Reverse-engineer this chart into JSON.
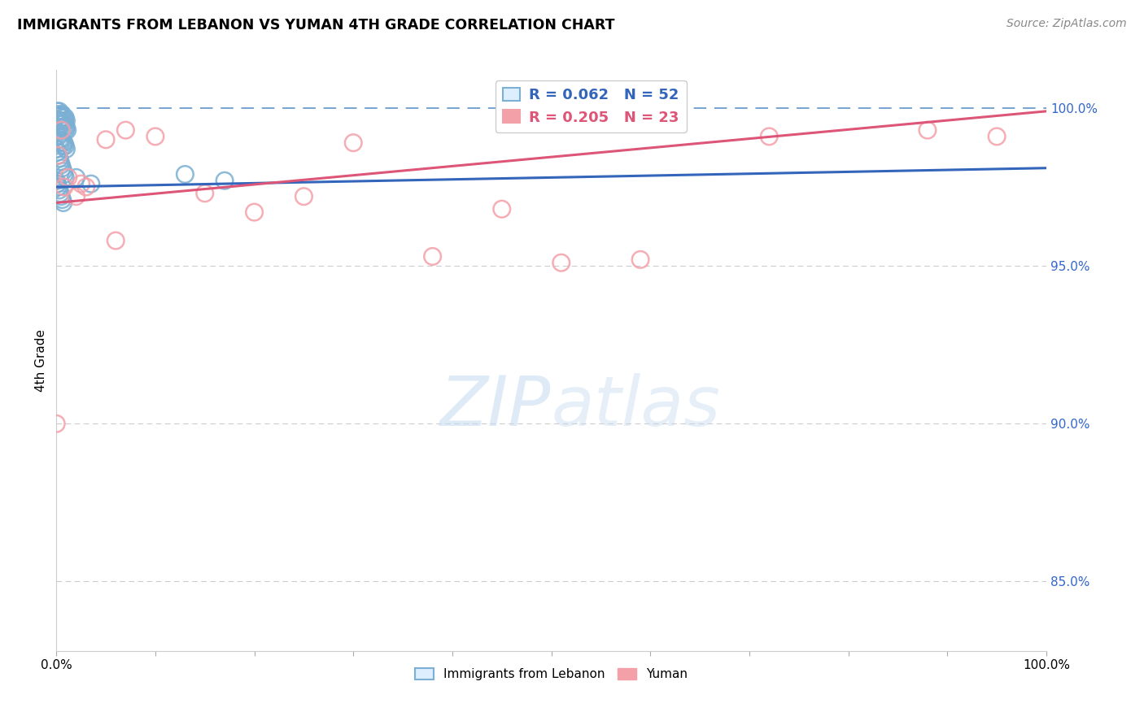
{
  "title": "IMMIGRANTS FROM LEBANON VS YUMAN 4TH GRADE CORRELATION CHART",
  "source": "Source: ZipAtlas.com",
  "ylabel": "4th Grade",
  "ylabel_right_ticks": [
    "85.0%",
    "90.0%",
    "95.0%",
    "100.0%"
  ],
  "ylabel_right_values": [
    0.85,
    0.9,
    0.95,
    1.0
  ],
  "xlim": [
    0.0,
    1.0
  ],
  "ylim": [
    0.828,
    1.012
  ],
  "legend1_R": "0.062",
  "legend1_N": "52",
  "legend2_R": "0.205",
  "legend2_N": "23",
  "blue_color": "#7BAFD4",
  "pink_color": "#F4A0A8",
  "blue_line_color": "#3366BB",
  "pink_line_color": "#DD5577",
  "dashed_line_color": "#6699CC",
  "blue_trend_x": [
    0.0,
    1.0
  ],
  "blue_trend_y": [
    0.975,
    0.981
  ],
  "pink_trend_x": [
    0.0,
    1.0
  ],
  "pink_trend_y": [
    0.97,
    0.999
  ],
  "blue_scatter_x": [
    0.001,
    0.002,
    0.003,
    0.004,
    0.005,
    0.006,
    0.007,
    0.008,
    0.009,
    0.01,
    0.002,
    0.003,
    0.004,
    0.005,
    0.006,
    0.007,
    0.008,
    0.009,
    0.01,
    0.011,
    0.001,
    0.002,
    0.003,
    0.004,
    0.005,
    0.006,
    0.007,
    0.008,
    0.009,
    0.01,
    0.0,
    0.001,
    0.002,
    0.003,
    0.004,
    0.005,
    0.006,
    0.007,
    0.008,
    0.009,
    0.0,
    0.001,
    0.002,
    0.003,
    0.004,
    0.005,
    0.006,
    0.007,
    0.13,
    0.17,
    0.02,
    0.035
  ],
  "blue_scatter_y": [
    0.999,
    0.998,
    0.999,
    0.998,
    0.997,
    0.998,
    0.997,
    0.996,
    0.997,
    0.996,
    0.996,
    0.995,
    0.996,
    0.995,
    0.994,
    0.995,
    0.994,
    0.993,
    0.994,
    0.993,
    0.992,
    0.991,
    0.99,
    0.989,
    0.99,
    0.989,
    0.988,
    0.989,
    0.988,
    0.987,
    0.987,
    0.986,
    0.985,
    0.984,
    0.983,
    0.982,
    0.981,
    0.98,
    0.979,
    0.978,
    0.977,
    0.976,
    0.975,
    0.974,
    0.973,
    0.972,
    0.971,
    0.97,
    0.979,
    0.977,
    0.978,
    0.976
  ],
  "pink_scatter_x": [
    0.0,
    0.002,
    0.005,
    0.008,
    0.012,
    0.02,
    0.025,
    0.03,
    0.05,
    0.06,
    0.07,
    0.1,
    0.15,
    0.2,
    0.25,
    0.3,
    0.38,
    0.45,
    0.51,
    0.59,
    0.72,
    0.88,
    0.95
  ],
  "pink_scatter_y": [
    0.9,
    0.985,
    0.993,
    0.975,
    0.978,
    0.972,
    0.976,
    0.975,
    0.99,
    0.958,
    0.993,
    0.991,
    0.973,
    0.967,
    0.972,
    0.989,
    0.953,
    0.968,
    0.951,
    0.952,
    0.991,
    0.993,
    0.991
  ]
}
